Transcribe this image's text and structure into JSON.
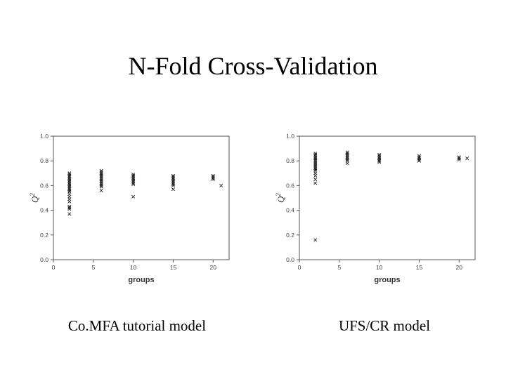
{
  "slide": {
    "title": "N-Fold Cross-Validation"
  },
  "captions": {
    "left": "Co.MFA tutorial model",
    "right": "UFS/CR model"
  },
  "colors": {
    "marker": "#222222",
    "axes": "#555555",
    "background": "#ffffff"
  },
  "chart_data": [
    {
      "type": "scatter",
      "marker": "x",
      "title": "",
      "xlabel": "groups",
      "ylabel": "Q2",
      "xlim": [
        0,
        22
      ],
      "ylim": [
        0.0,
        1.0
      ],
      "xticks": [
        0,
        5,
        10,
        15,
        20
      ],
      "xtick_labels": [
        "0",
        "5",
        "10",
        "15",
        "20"
      ],
      "yticks": [
        0.0,
        0.2,
        0.4,
        0.6,
        0.8,
        1.0
      ],
      "ytick_labels": [
        "0.0",
        "0.2",
        "0.4",
        "0.6",
        "0.8",
        "1.0"
      ],
      "grid": false,
      "series": [
        {
          "name": "groups=2",
          "x": 2,
          "values": [
            0.7,
            0.69,
            0.68,
            0.67,
            0.66,
            0.65,
            0.64,
            0.63,
            0.62,
            0.61,
            0.6,
            0.59,
            0.58,
            0.57,
            0.56,
            0.55,
            0.53,
            0.51,
            0.49,
            0.47,
            0.43,
            0.42,
            0.41,
            0.37
          ]
        },
        {
          "name": "groups=6",
          "x": 6,
          "values": [
            0.72,
            0.71,
            0.7,
            0.69,
            0.68,
            0.67,
            0.66,
            0.65,
            0.64,
            0.63,
            0.62,
            0.61,
            0.6,
            0.59,
            0.56
          ]
        },
        {
          "name": "groups=10",
          "x": 10,
          "values": [
            0.69,
            0.68,
            0.67,
            0.66,
            0.65,
            0.64,
            0.63,
            0.62,
            0.61,
            0.51
          ]
        },
        {
          "name": "groups=15",
          "x": 15,
          "values": [
            0.68,
            0.67,
            0.66,
            0.65,
            0.64,
            0.63,
            0.62,
            0.61,
            0.6,
            0.57
          ]
        },
        {
          "name": "groups=20",
          "x": 20,
          "values": [
            0.68,
            0.67,
            0.66,
            0.65
          ]
        },
        {
          "name": "groups=21",
          "x": 21,
          "values": [
            0.6
          ]
        }
      ]
    },
    {
      "type": "scatter",
      "marker": "x",
      "title": "",
      "xlabel": "groups",
      "ylabel": "Q2",
      "xlim": [
        0,
        22
      ],
      "ylim": [
        0.0,
        1.0
      ],
      "xticks": [
        0,
        5,
        10,
        15,
        20
      ],
      "xtick_labels": [
        "0",
        "5",
        "10",
        "15",
        "20"
      ],
      "yticks": [
        0.0,
        0.2,
        0.4,
        0.6,
        0.8,
        1.0
      ],
      "ytick_labels": [
        "0.0",
        "0.2",
        "0.4",
        "0.6",
        "0.8",
        "1.0"
      ],
      "grid": false,
      "series": [
        {
          "name": "groups=2",
          "x": 2,
          "values": [
            0.86,
            0.85,
            0.84,
            0.83,
            0.82,
            0.81,
            0.8,
            0.79,
            0.78,
            0.77,
            0.76,
            0.75,
            0.74,
            0.73,
            0.72,
            0.7,
            0.68,
            0.65,
            0.62,
            0.16
          ]
        },
        {
          "name": "groups=6",
          "x": 6,
          "values": [
            0.87,
            0.86,
            0.85,
            0.84,
            0.83,
            0.82,
            0.81,
            0.8,
            0.78
          ]
        },
        {
          "name": "groups=10",
          "x": 10,
          "values": [
            0.85,
            0.84,
            0.83,
            0.82,
            0.81,
            0.8,
            0.79
          ]
        },
        {
          "name": "groups=15",
          "x": 15,
          "values": [
            0.84,
            0.83,
            0.82,
            0.81,
            0.8
          ]
        },
        {
          "name": "groups=20",
          "x": 20,
          "values": [
            0.83,
            0.82,
            0.81
          ]
        },
        {
          "name": "groups=21",
          "x": 21,
          "values": [
            0.82
          ]
        }
      ]
    }
  ]
}
